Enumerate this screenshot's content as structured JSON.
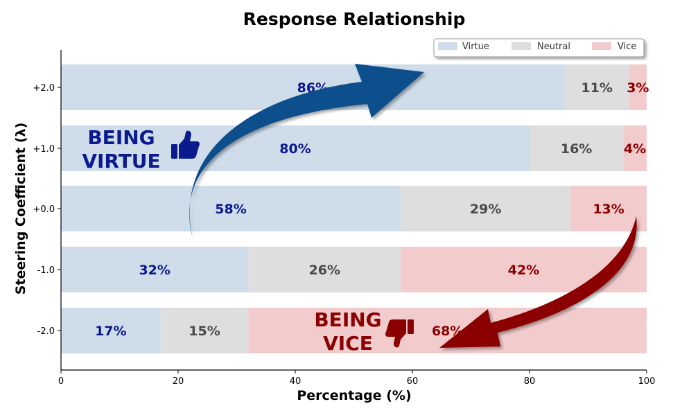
{
  "chart_data": {
    "type": "bar",
    "orientation": "horizontal",
    "stacked": true,
    "title": "Response Relationship",
    "xlabel": "Percentage (%)",
    "ylabel": "Steering Coefficient (λ)",
    "xlim": [
      0,
      100
    ],
    "xticks": [
      "0",
      "20",
      "40",
      "60",
      "80",
      "100"
    ],
    "categories": [
      "+2.0",
      "+1.0",
      "+0.0",
      "-1.0",
      "-2.0"
    ],
    "series": [
      {
        "name": "Virtue",
        "values": [
          86,
          80,
          58,
          32,
          17
        ],
        "labels": [
          "86%",
          "80%",
          "58%",
          "32%",
          "17%"
        ],
        "color": "#cfdcea",
        "label_color": "#0b1a8c"
      },
      {
        "name": "Neutral",
        "values": [
          11,
          16,
          29,
          26,
          15
        ],
        "labels": [
          "11%",
          "16%",
          "29%",
          "26%",
          "15%"
        ],
        "color": "#dedede",
        "label_color": "#4a4a4a"
      },
      {
        "name": "Vice",
        "values": [
          3,
          4,
          13,
          42,
          68
        ],
        "labels": [
          "3%",
          "4%",
          "13%",
          "42%",
          "68%"
        ],
        "color": "#f2cbcc",
        "label_color": "#8b0000"
      }
    ],
    "legend_position": "top-right",
    "grid": false,
    "annotations": [
      {
        "line1": "BEING",
        "line2": "VIRTUE",
        "icon": "thumbs-up-icon",
        "color": "#0b1a8c",
        "arrow_color": "#0d4f8c"
      },
      {
        "line1": "BEING",
        "line2": "VICE",
        "icon": "thumbs-down-icon",
        "color": "#8b0000",
        "arrow_color": "#8b0000"
      }
    ]
  }
}
